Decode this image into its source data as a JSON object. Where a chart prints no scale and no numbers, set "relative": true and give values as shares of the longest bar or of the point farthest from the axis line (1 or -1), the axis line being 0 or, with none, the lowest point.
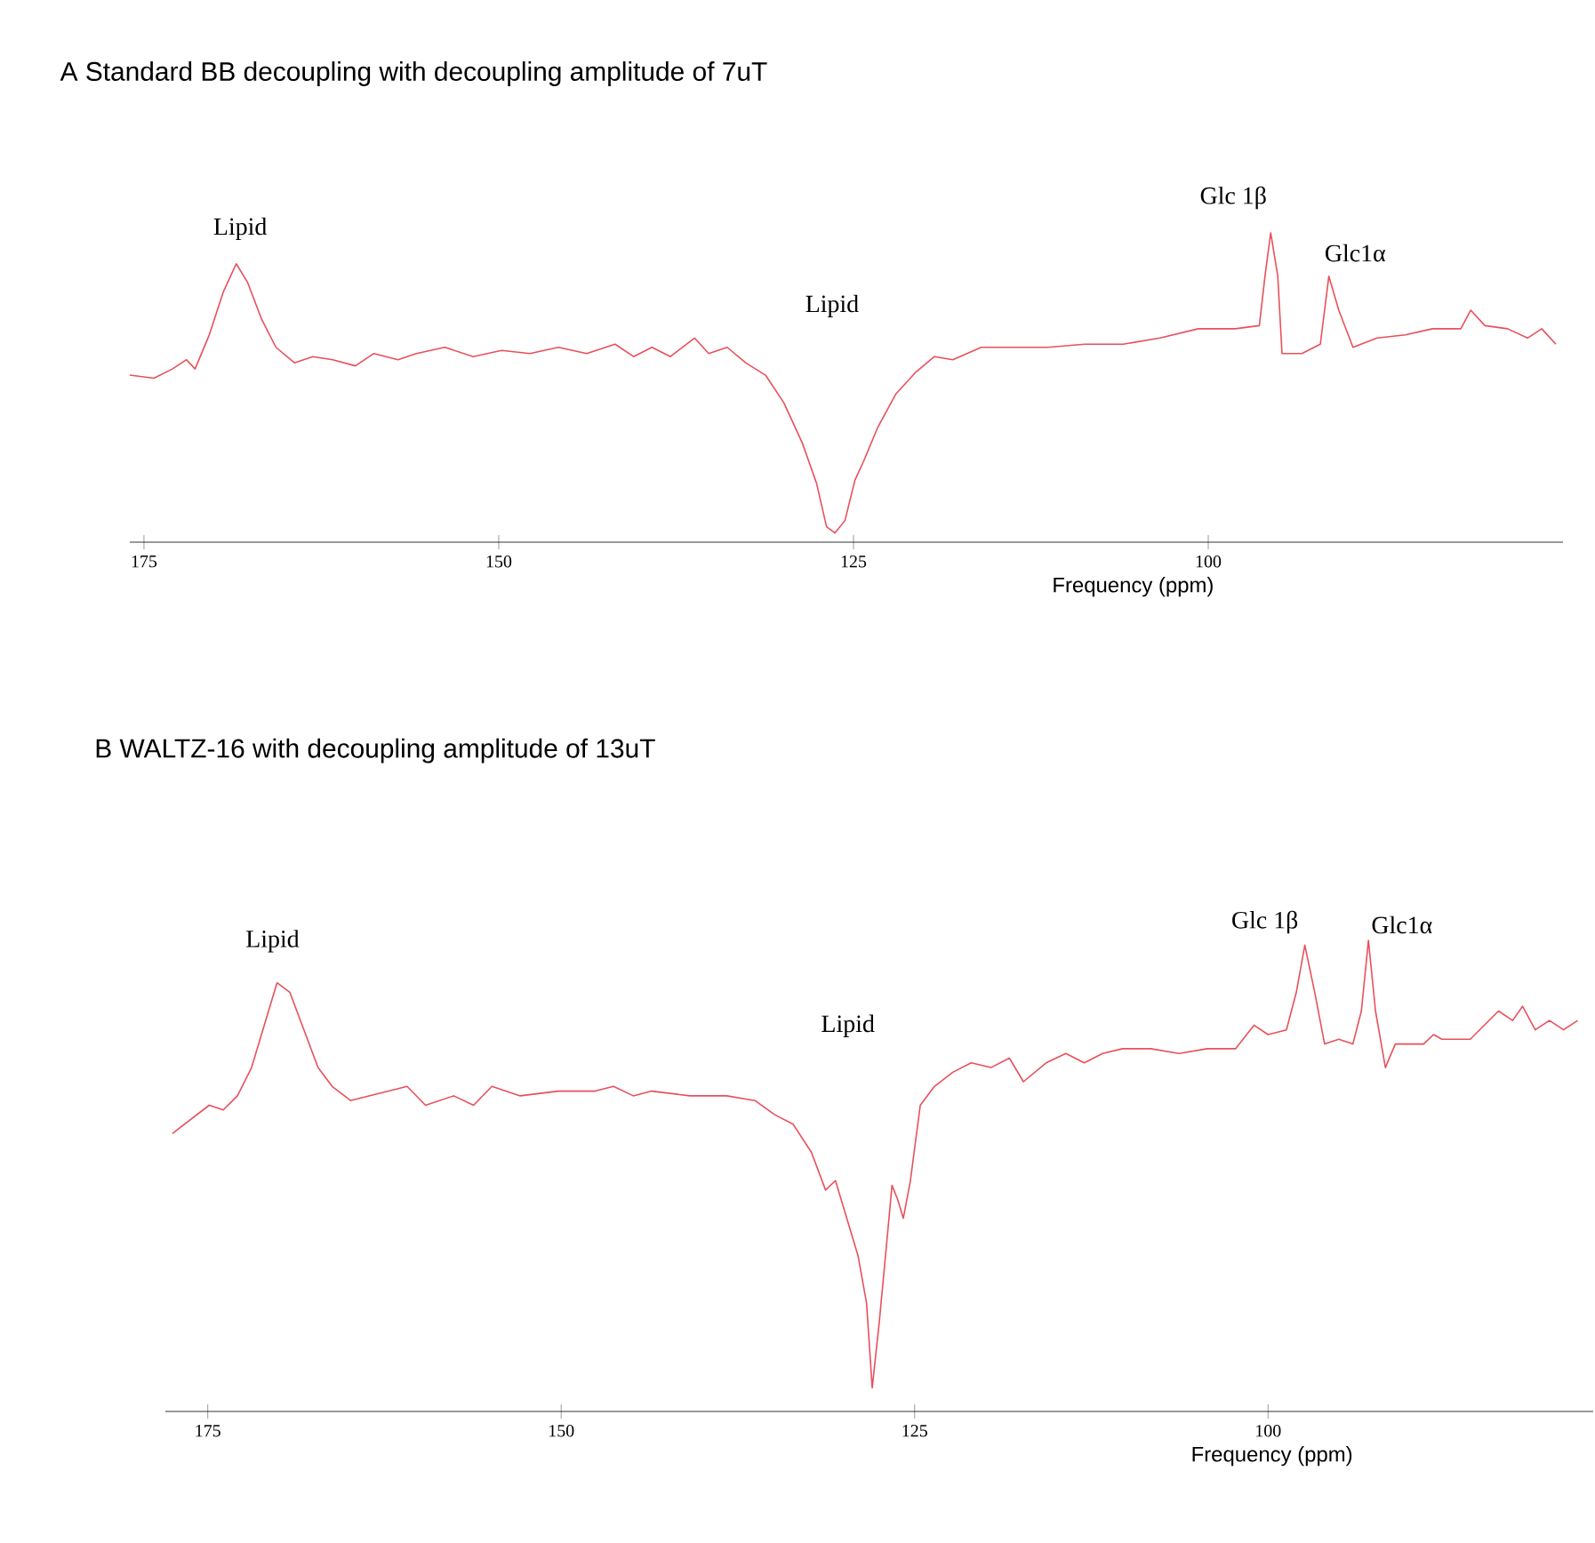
{
  "chart_data": [
    {
      "type": "line",
      "title": "A   Standard BB decoupling with decoupling amplitude of 7uT",
      "xlabel": "Frequency (ppm)",
      "relative": true,
      "xlim": [
        176,
        75
      ],
      "xticks": [
        175,
        150,
        125,
        100
      ],
      "marker": "none",
      "line_style": "solid",
      "x": [
        176.0,
        174.3,
        173.0,
        172.0,
        171.4,
        170.4,
        169.4,
        168.5,
        167.7,
        166.7,
        165.7,
        164.4,
        163.1,
        161.7,
        160.1,
        158.8,
        157.1,
        155.8,
        153.8,
        151.8,
        149.8,
        147.8,
        145.8,
        143.8,
        141.8,
        140.5,
        139.2,
        137.9,
        136.2,
        135.2,
        133.9,
        132.6,
        131.2,
        129.9,
        128.6,
        127.6,
        126.9,
        126.3,
        125.6,
        124.9,
        124.3,
        123.3,
        122.0,
        120.6,
        119.3,
        118.0,
        116.0,
        114.0,
        111.3,
        108.7,
        106.0,
        103.4,
        100.7,
        98.1,
        96.4,
        96.0,
        95.6,
        95.1,
        94.8,
        93.4,
        92.1,
        91.5,
        90.8,
        89.8,
        88.1,
        86.1,
        84.2,
        82.2,
        81.5,
        80.5,
        78.9,
        77.5,
        76.5,
        75.5
      ],
      "series": [
        {
          "color": "#e8505a",
          "values": [
            0.54,
            0.53,
            0.56,
            0.59,
            0.56,
            0.67,
            0.81,
            0.9,
            0.84,
            0.72,
            0.63,
            0.58,
            0.6,
            0.59,
            0.57,
            0.61,
            0.59,
            0.61,
            0.63,
            0.6,
            0.62,
            0.61,
            0.63,
            0.61,
            0.64,
            0.6,
            0.63,
            0.6,
            0.66,
            0.61,
            0.63,
            0.58,
            0.54,
            0.45,
            0.32,
            0.19,
            0.05,
            0.03,
            0.07,
            0.2,
            0.26,
            0.37,
            0.48,
            0.55,
            0.6,
            0.59,
            0.63,
            0.63,
            0.63,
            0.64,
            0.64,
            0.66,
            0.69,
            0.69,
            0.7,
            0.86,
            1.0,
            0.86,
            0.61,
            0.61,
            0.64,
            0.86,
            0.75,
            0.63,
            0.66,
            0.67,
            0.69,
            0.69,
            0.75,
            0.7,
            0.69,
            0.66,
            0.69,
            0.64
          ]
        }
      ],
      "annotations": [
        "Lipid",
        "Lipid",
        "Glc 1β",
        "Glc1α"
      ]
    },
    {
      "type": "line",
      "title": "B   WALTZ-16 with decoupling amplitude of 13uT",
      "xlabel": "Frequency (ppm)",
      "relative": true,
      "xlim": [
        178,
        77
      ],
      "xticks": [
        175,
        150,
        125,
        100
      ],
      "marker": "none",
      "line_style": "solid",
      "x": [
        177.5,
        176.2,
        174.9,
        173.9,
        172.9,
        171.9,
        170.9,
        170.1,
        169.2,
        168.2,
        167.2,
        166.2,
        164.9,
        163.6,
        162.2,
        160.9,
        159.6,
        157.6,
        156.2,
        154.9,
        152.9,
        150.2,
        147.6,
        146.3,
        144.9,
        143.6,
        140.9,
        138.3,
        136.3,
        134.9,
        133.6,
        132.3,
        131.3,
        130.6,
        129.6,
        129.0,
        128.4,
        128.0,
        127.5,
        127.0,
        126.6,
        126.2,
        125.8,
        125.3,
        124.6,
        123.6,
        122.3,
        121.0,
        119.6,
        118.3,
        117.3,
        115.7,
        114.3,
        113.0,
        111.7,
        110.3,
        108.3,
        106.3,
        104.3,
        102.3,
        101.0,
        100.0,
        98.7,
        98.0,
        97.4,
        96.7,
        96.0,
        95.0,
        94.0,
        93.4,
        92.9,
        92.4,
        91.7,
        91.0,
        89.0,
        88.3,
        87.7,
        85.7,
        83.7,
        82.7,
        82.0,
        81.1,
        80.1,
        79.1,
        78.1
      ],
      "series": [
        {
          "color": "#e8505a",
          "values": [
            0.59,
            0.62,
            0.65,
            0.64,
            0.67,
            0.73,
            0.83,
            0.91,
            0.89,
            0.81,
            0.73,
            0.69,
            0.66,
            0.67,
            0.68,
            0.69,
            0.65,
            0.67,
            0.65,
            0.69,
            0.67,
            0.68,
            0.68,
            0.69,
            0.67,
            0.68,
            0.67,
            0.67,
            0.66,
            0.63,
            0.61,
            0.55,
            0.47,
            0.49,
            0.39,
            0.33,
            0.23,
            0.05,
            0.19,
            0.35,
            0.48,
            0.45,
            0.41,
            0.49,
            0.65,
            0.69,
            0.72,
            0.74,
            0.73,
            0.75,
            0.7,
            0.74,
            0.76,
            0.74,
            0.76,
            0.77,
            0.77,
            0.76,
            0.77,
            0.77,
            0.82,
            0.8,
            0.81,
            0.89,
            0.99,
            0.89,
            0.78,
            0.79,
            0.78,
            0.85,
            1.0,
            0.85,
            0.73,
            0.78,
            0.78,
            0.8,
            0.79,
            0.79,
            0.85,
            0.83,
            0.86,
            0.81,
            0.83,
            0.81,
            0.83
          ]
        }
      ],
      "annotations": [
        "Lipid",
        "Lipid",
        "Glc 1β",
        "Glc1α"
      ]
    }
  ]
}
